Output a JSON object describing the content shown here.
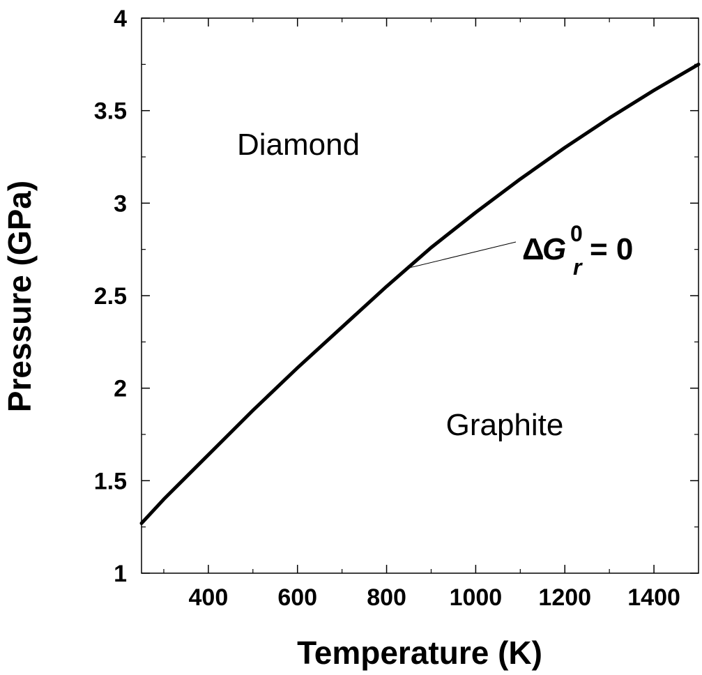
{
  "chart_data": {
    "type": "line",
    "title": "",
    "xlabel": "Temperature (K)",
    "ylabel": "Pressure (GPa)",
    "xlim": [
      250,
      1500
    ],
    "ylim": [
      1,
      4
    ],
    "x_ticks": [
      400,
      600,
      800,
      1000,
      1200,
      1400
    ],
    "x_tick_labels": [
      "400",
      "600",
      "800",
      "1000",
      "1200",
      "1400"
    ],
    "y_ticks": [
      1,
      1.5,
      2,
      2.5,
      3,
      3.5,
      4
    ],
    "y_tick_labels": [
      "1",
      "1.5",
      "2",
      "2.5",
      "3",
      "3.5",
      "4"
    ],
    "grid": false,
    "series": [
      {
        "x": [
          250,
          300,
          400,
          500,
          600,
          700,
          800,
          900,
          1000,
          1100,
          1200,
          1300,
          1400,
          1500
        ],
        "y": [
          1.27,
          1.4,
          1.64,
          1.88,
          2.11,
          2.33,
          2.55,
          2.76,
          2.95,
          3.13,
          3.3,
          3.46,
          3.61,
          3.75
        ]
      }
    ],
    "annotations": {
      "region_upper": "Diamond",
      "region_lower": "Graphite",
      "curve_label": {
        "delta": "Δ",
        "symbol": "G",
        "superscript": "0",
        "subscript": "r",
        "rest": "= 0",
        "points_to": {
          "x": 850,
          "y": 2.65
        }
      }
    }
  }
}
